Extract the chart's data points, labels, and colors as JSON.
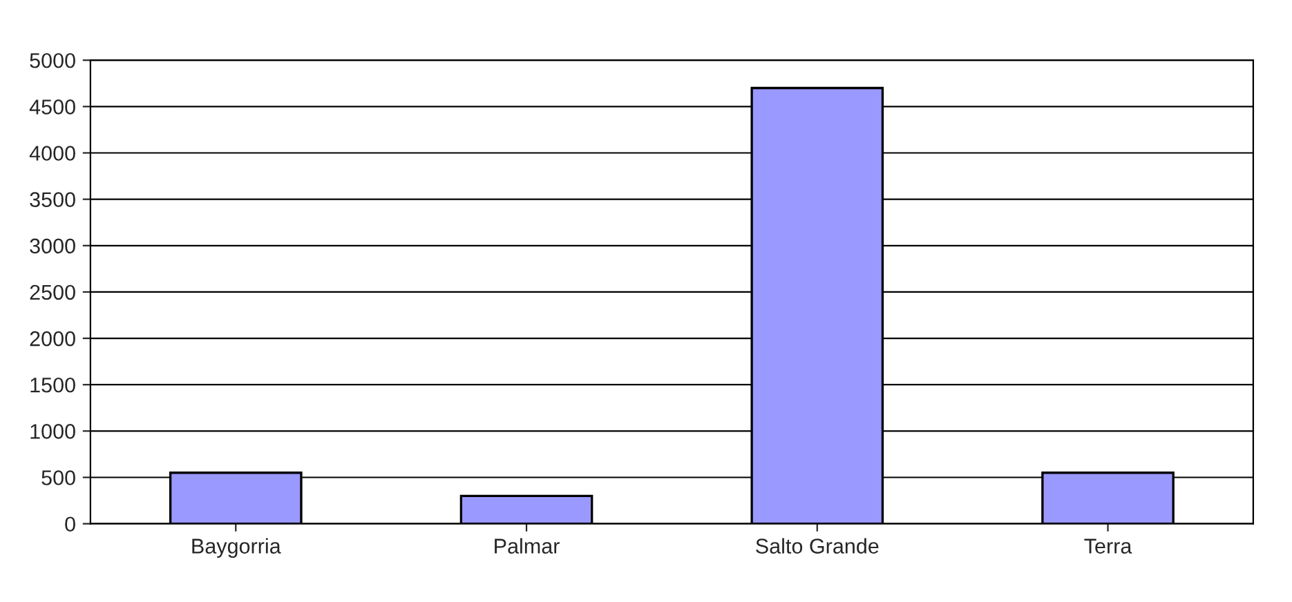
{
  "chart_data": {
    "type": "bar",
    "categories": [
      "Baygorria",
      "Palmar",
      "Salto Grande",
      "Terra"
    ],
    "values": [
      550,
      300,
      4700,
      550
    ],
    "color": "#9999ff",
    "ylim": [
      0,
      5000
    ],
    "yticks": [
      0,
      500,
      1000,
      1500,
      2000,
      2500,
      3000,
      3500,
      4000,
      4500,
      5000
    ],
    "grid": "y"
  }
}
